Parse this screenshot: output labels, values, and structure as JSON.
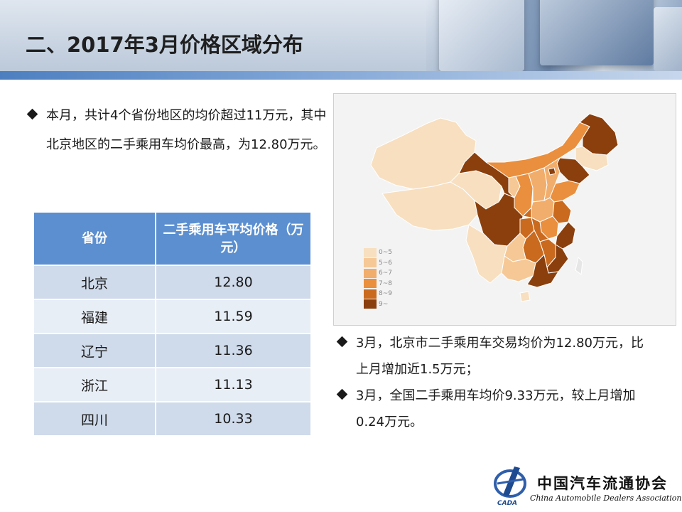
{
  "header": {
    "title": "二、2017年3月价格区域分布"
  },
  "intro": {
    "text": "本月，共计4个省份地区的均价超过11万元，其中北京地区的二手乘用车均价最高，为12.80万元。"
  },
  "table": {
    "headers": [
      "省份",
      "二手乘用车平均价格（万元）"
    ],
    "rows": [
      {
        "province": "北京",
        "price": "12.80"
      },
      {
        "province": "福建",
        "price": "11.59"
      },
      {
        "province": "辽宁",
        "price": "11.36"
      },
      {
        "province": "浙江",
        "price": "11.13"
      },
      {
        "province": "四川",
        "price": "10.33"
      }
    ]
  },
  "map": {
    "legend": [
      {
        "label": "0~5",
        "color": "#f7dfc0"
      },
      {
        "label": "5~6",
        "color": "#f5c896"
      },
      {
        "label": "6~7",
        "color": "#f1ad6b"
      },
      {
        "label": "7~8",
        "color": "#e98f3e"
      },
      {
        "label": "8~9",
        "color": "#c96a1e"
      },
      {
        "label": "9~",
        "color": "#8a3f0c"
      }
    ]
  },
  "notes": [
    "3月，北京市二手乘用车交易均价为12.80万元，比上月增加近1.5万元；",
    "3月，全国二手乘用车均价9.33万元，较上月增加0.24万元。"
  ],
  "logo": {
    "name_cn": "中国汽车流通协会",
    "name_en": "China Automobile Dealers Association",
    "mark_text": "CADA"
  }
}
